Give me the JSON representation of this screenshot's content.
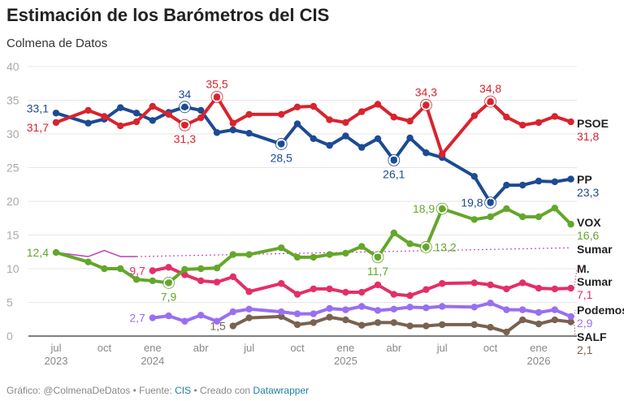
{
  "title": "Estimación de los Barómetros del CIS",
  "subtitle": "Colmena de Datos",
  "footer": {
    "prefix": "Gráfico: @ColmenaDeDatos • Fuente: ",
    "source": "CIS",
    "middle": " • Creado con ",
    "tool": "Datawrapper"
  },
  "chart_data": {
    "type": "line",
    "ylim": [
      0,
      40
    ],
    "yticks": [
      0,
      5,
      10,
      15,
      20,
      25,
      30,
      35,
      40
    ],
    "grid": true,
    "xticks": [
      {
        "date": "2023-07",
        "label": "jul",
        "year": "2023"
      },
      {
        "date": "2023-10",
        "label": "oct",
        "year": ""
      },
      {
        "date": "2024-01",
        "label": "ene",
        "year": "2024"
      },
      {
        "date": "2024-04",
        "label": "abr",
        "year": ""
      },
      {
        "date": "2024-07",
        "label": "jul",
        "year": ""
      },
      {
        "date": "2024-10",
        "label": "oct",
        "year": ""
      },
      {
        "date": "2025-01",
        "label": "ene",
        "year": "2025"
      },
      {
        "date": "2025-04",
        "label": "abr",
        "year": ""
      },
      {
        "date": "2025-07",
        "label": "jul",
        "year": ""
      },
      {
        "date": "2025-10",
        "label": "oct",
        "year": ""
      },
      {
        "date": "2026-01",
        "label": "ene",
        "year": "2026"
      }
    ],
    "x": [
      "2023-07",
      "2023-09",
      "2023-10",
      "2023-11",
      "2023-12",
      "2024-01",
      "2024-02",
      "2024-03",
      "2024-04",
      "2024-05",
      "2024-06",
      "2024-07",
      "2024-09",
      "2024-10",
      "2024-11",
      "2024-12",
      "2025-01",
      "2025-02",
      "2025-03",
      "2025-04",
      "2025-05",
      "2025-06",
      "2025-07",
      "2025-09",
      "2025-10",
      "2025-11",
      "2025-12",
      "2026-01",
      "2026-02",
      "2026-03"
    ],
    "series": [
      {
        "name": "PSOE",
        "color": "#d9232d",
        "end_label": "31,8",
        "values": [
          31.7,
          33.5,
          32.6,
          31.2,
          31.8,
          34.1,
          32.9,
          31.3,
          32.4,
          35.5,
          31.6,
          32.9,
          32.9,
          34.0,
          34.1,
          32.1,
          31.7,
          33.3,
          34.4,
          32.5,
          31.9,
          34.3,
          27.0,
          32.7,
          34.8,
          32.5,
          31.3,
          31.7,
          32.6,
          31.8
        ]
      },
      {
        "name": "PP",
        "color": "#1c4a94",
        "end_label": "23,3",
        "values": [
          33.1,
          31.6,
          32.2,
          33.9,
          33.1,
          32.0,
          33.2,
          34.0,
          33.5,
          30.2,
          30.6,
          30.1,
          28.5,
          31.5,
          29.3,
          28.3,
          29.7,
          28.0,
          29.3,
          26.1,
          29.4,
          27.2,
          26.5,
          23.7,
          19.8,
          22.4,
          22.4,
          23.0,
          22.9,
          23.3
        ]
      },
      {
        "name": "VOX",
        "color": "#63a72a",
        "end_label": "16,6",
        "values": [
          12.4,
          11.0,
          10.0,
          10.0,
          8.4,
          8.2,
          7.9,
          9.9,
          10.0,
          10.1,
          12.1,
          12.1,
          13.1,
          11.7,
          11.7,
          12.1,
          12.3,
          13.3,
          11.7,
          15.3,
          13.7,
          13.2,
          18.9,
          17.3,
          17.7,
          18.9,
          17.7,
          17.7,
          19.0,
          16.6
        ]
      },
      {
        "name": "Sumar",
        "color": "#c04dba",
        "end_label": "",
        "thin": true,
        "values": [
          12.4,
          11.8,
          12.7,
          11.8,
          11.8,
          null,
          null,
          null,
          null,
          null,
          null,
          null,
          null,
          null,
          null,
          null,
          null,
          null,
          null,
          null,
          null,
          null,
          null,
          null,
          null,
          null,
          null,
          null,
          null,
          null
        ],
        "trend": [
          [
            "2023-12",
            11.8
          ],
          [
            "2026-03",
            13.1
          ]
        ]
      },
      {
        "name": "M. Sumar",
        "color": "#e32f67",
        "end_label": "7,1",
        "values": [
          null,
          null,
          null,
          null,
          null,
          9.7,
          10.2,
          9.1,
          8.2,
          8.0,
          8.8,
          6.6,
          7.8,
          6.2,
          7.0,
          7.0,
          6.5,
          6.5,
          7.6,
          6.2,
          6.0,
          6.9,
          7.8,
          7.9,
          7.6,
          7.0,
          7.9,
          7.1,
          7.0,
          7.1
        ]
      },
      {
        "name": "Podemos",
        "color": "#9a6ff0",
        "end_label": "2,9",
        "values": [
          null,
          null,
          null,
          null,
          null,
          2.7,
          3.0,
          2.2,
          3.1,
          2.2,
          3.6,
          4.0,
          3.6,
          3.3,
          3.3,
          4.1,
          3.9,
          4.4,
          3.8,
          4.0,
          4.3,
          4.2,
          4.4,
          4.3,
          4.9,
          3.9,
          3.9,
          3.5,
          3.9,
          2.9
        ]
      },
      {
        "name": "SALF",
        "color": "#7a6250",
        "end_label": "2,1",
        "values": [
          null,
          null,
          null,
          null,
          null,
          null,
          null,
          null,
          null,
          null,
          1.5,
          2.7,
          2.9,
          1.7,
          2.0,
          2.8,
          2.4,
          1.6,
          2.0,
          2.0,
          1.5,
          1.5,
          1.7,
          1.7,
          1.3,
          0.6,
          2.4,
          1.8,
          2.4,
          2.1
        ]
      }
    ],
    "annotations": [
      {
        "series": "PSOE",
        "date": "2023-07",
        "label": "31,7",
        "pos": "left",
        "ring": false
      },
      {
        "series": "PSOE",
        "date": "2024-03",
        "label": "31,3",
        "pos": "below",
        "ring": true
      },
      {
        "series": "PSOE",
        "date": "2024-05",
        "label": "35,5",
        "pos": "above",
        "ring": true
      },
      {
        "series": "PSOE",
        "date": "2025-06",
        "label": "34,3",
        "pos": "above",
        "ring": true
      },
      {
        "series": "PSOE",
        "date": "2025-10",
        "label": "34,8",
        "pos": "above",
        "ring": true
      },
      {
        "series": "PP",
        "date": "2023-07",
        "label": "33,1",
        "pos": "left",
        "ring": false
      },
      {
        "series": "PP",
        "date": "2024-03",
        "label": "34",
        "pos": "above",
        "ring": true
      },
      {
        "series": "PP",
        "date": "2024-09",
        "label": "28,5",
        "pos": "below",
        "ring": true
      },
      {
        "series": "PP",
        "date": "2025-04",
        "label": "26,1",
        "pos": "below",
        "ring": true
      },
      {
        "series": "PP",
        "date": "2025-10",
        "label": "19,8",
        "pos": "left",
        "ring": true
      },
      {
        "series": "VOX",
        "date": "2023-07",
        "label": "12,4",
        "pos": "left",
        "ring": false
      },
      {
        "series": "VOX",
        "date": "2024-02",
        "label": "7,9",
        "pos": "below",
        "ring": true
      },
      {
        "series": "VOX",
        "date": "2025-03",
        "label": "11,7",
        "pos": "below",
        "ring": true
      },
      {
        "series": "VOX",
        "date": "2025-06",
        "label": "13,2",
        "pos": "right",
        "ring": true
      },
      {
        "series": "VOX",
        "date": "2025-07",
        "label": "18,9",
        "pos": "left",
        "ring": true
      },
      {
        "series": "M. Sumar",
        "date": "2024-01",
        "label": "9,7",
        "pos": "left",
        "ring": false
      },
      {
        "series": "Podemos",
        "date": "2024-01",
        "label": "2,7",
        "pos": "left",
        "ring": false
      },
      {
        "series": "SALF",
        "date": "2024-06",
        "label": "1,5",
        "pos": "left",
        "ring": false
      }
    ]
  }
}
